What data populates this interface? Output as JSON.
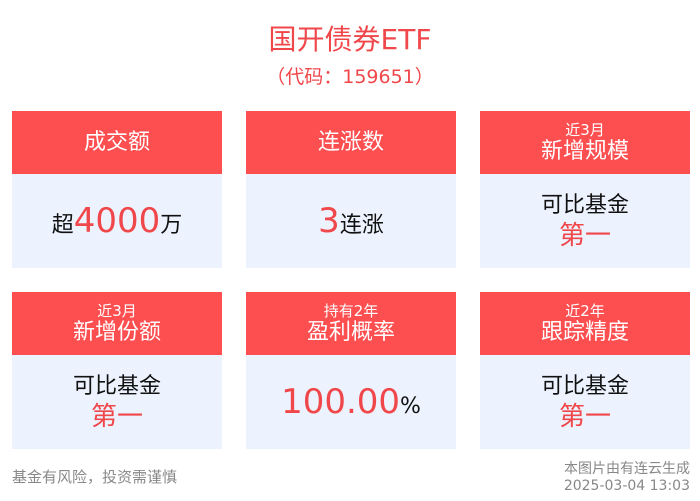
{
  "title": "国开债券ETF",
  "code": "（代码：159651）",
  "cards": [
    {
      "sub": "",
      "head": "成交额",
      "pre": "超",
      "value": "4000",
      "post": "万"
    },
    {
      "sub": "",
      "head": "连涨数",
      "pre": "",
      "value": "3",
      "post": "连涨"
    },
    {
      "sub": "近3月",
      "head": "新增规模",
      "line1": "可比基金",
      "line2": "第一"
    },
    {
      "sub": "近3月",
      "head": "新增份额",
      "line1": "可比基金",
      "line2": "第一"
    },
    {
      "sub": "持有2年",
      "head": "盈利概率",
      "pre": "",
      "value": "100.00",
      "post": "%"
    },
    {
      "sub": "近2年",
      "head": "跟踪精度",
      "line1": "可比基金",
      "line2": "第一"
    }
  ],
  "footer": {
    "disclaimer": "基金有风险，投资需谨慎",
    "source": "本图片由有连云生成",
    "timestamp": "2025-03-04 13:03"
  },
  "colors": {
    "accent": "#fd4e50",
    "card_bg": "#edf3fe"
  }
}
